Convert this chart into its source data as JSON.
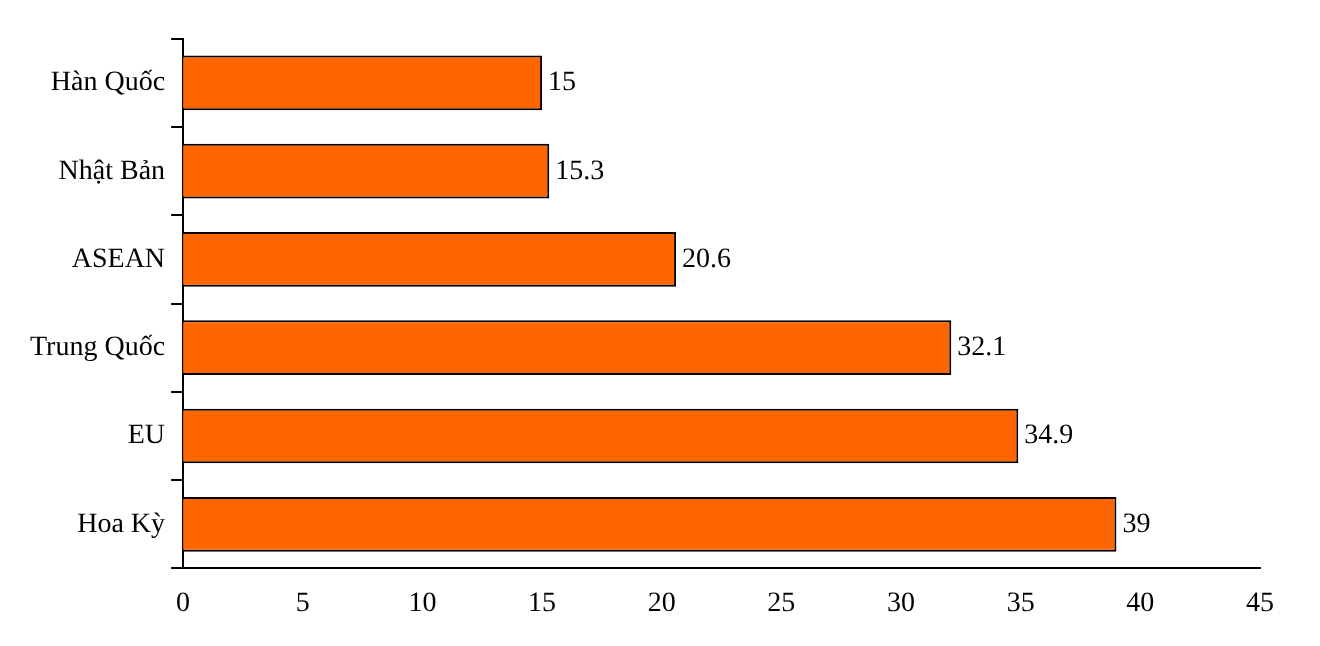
{
  "chart_data": {
    "type": "bar",
    "orientation": "horizontal",
    "categories": [
      "Hàn Quốc",
      "Nhật Bản",
      "ASEAN",
      "Trung Quốc",
      "EU",
      "Hoa Kỳ"
    ],
    "values": [
      15,
      15.3,
      20.6,
      32.1,
      34.9,
      39
    ],
    "color": "#ff6600",
    "xlim": [
      0,
      45
    ],
    "xticks": [
      0,
      5,
      10,
      15,
      20,
      25,
      30,
      35,
      40,
      45
    ],
    "grid": false,
    "legend": false,
    "data_labels": true
  }
}
